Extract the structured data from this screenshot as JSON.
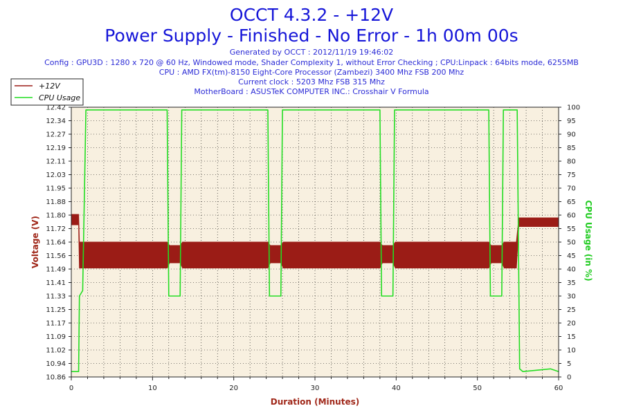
{
  "title": "OCCT 4.3.2 - +12V",
  "subtitle": "Power Supply - Finished - No Error - 1h 00m 00s",
  "info_lines": [
    "Generated by OCCT : 2012/11/19 19:46:02",
    "Config : GPU3D : 1280 x 720 @ 60 Hz, Windowed mode, Shader Complexity 1, without Error Checking ; CPU:Linpack : 64bits mode, 6255MB",
    "CPU : AMD FX(tm)-8150 Eight-Core Processor (Zambezi) 3400 Mhz FSB 200 Mhz",
    "Current clock : 5203 Mhz FSB 315 Mhz",
    "MotherBoard : ASUSTeK COMPUTER INC.: Crosshair V Formula"
  ],
  "colors": {
    "voltage": "#9b1c16",
    "cpu": "#22dd22",
    "title": "#1515d8",
    "plot_bg": "#f8f0e0",
    "grid": "#000000"
  },
  "chart_data": {
    "type": "line",
    "title": "OCCT 4.3.2 - +12V",
    "xlabel": "Duration (Minutes)",
    "ylabel_left": "Voltage (V)",
    "ylabel_right": "CPU Usage (in %)",
    "xlim": [
      0,
      60
    ],
    "ylim_left": [
      10.86,
      12.42
    ],
    "ylim_right": [
      0,
      100
    ],
    "x_ticks": [
      0,
      10,
      20,
      30,
      40,
      50,
      60
    ],
    "y_ticks_left": [
      "10.86",
      "10.94",
      "11.02",
      "11.09",
      "11.17",
      "11.25",
      "11.33",
      "11.41",
      "11.49",
      "11.56",
      "11.64",
      "11.72",
      "11.80",
      "11.88",
      "11.95",
      "12.03",
      "12.11",
      "12.19",
      "12.27",
      "12.34",
      "12.42"
    ],
    "y_ticks_right": [
      0,
      5,
      10,
      15,
      20,
      25,
      30,
      35,
      40,
      45,
      50,
      55,
      60,
      65,
      70,
      75,
      80,
      85,
      90,
      95,
      100
    ],
    "grid": true,
    "legend": [
      "+12V",
      "CPU Usage"
    ],
    "legend_position": "top-left-outside",
    "series": [
      {
        "name": "+12V",
        "color": "#9b1c16",
        "x": [
          0,
          0.9,
          1.0,
          11.8,
          12.1,
          13.4,
          13.7,
          24.2,
          24.5,
          25.8,
          26.1,
          38.0,
          38.3,
          39.6,
          39.9,
          51.4,
          51.7,
          53.0,
          53.3,
          54.8,
          55.1,
          60
        ],
        "y_low": [
          11.74,
          11.74,
          11.49,
          11.49,
          11.52,
          11.52,
          11.49,
          11.49,
          11.52,
          11.52,
          11.49,
          11.49,
          11.52,
          11.52,
          11.49,
          11.49,
          11.52,
          11.52,
          11.49,
          11.49,
          11.73,
          11.73
        ],
        "y_high": [
          11.8,
          11.8,
          11.64,
          11.64,
          11.62,
          11.62,
          11.64,
          11.64,
          11.62,
          11.62,
          11.64,
          11.64,
          11.62,
          11.62,
          11.64,
          11.64,
          11.62,
          11.62,
          11.64,
          11.64,
          11.78,
          11.78
        ]
      },
      {
        "name": "CPU Usage",
        "color": "#22dd22",
        "x": [
          0,
          0.9,
          1.0,
          1.4,
          1.8,
          11.8,
          12.0,
          13.4,
          13.6,
          24.2,
          24.4,
          25.8,
          26.0,
          38.0,
          38.2,
          39.6,
          39.8,
          51.4,
          51.6,
          53.0,
          53.2,
          54.9,
          55.2,
          55.6,
          59.0,
          60
        ],
        "y": [
          2,
          2,
          30,
          32,
          99,
          99,
          30,
          30,
          99,
          99,
          30,
          30,
          99,
          99,
          30,
          30,
          99,
          99,
          30,
          30,
          99,
          99,
          3,
          2,
          3,
          2
        ]
      }
    ]
  }
}
